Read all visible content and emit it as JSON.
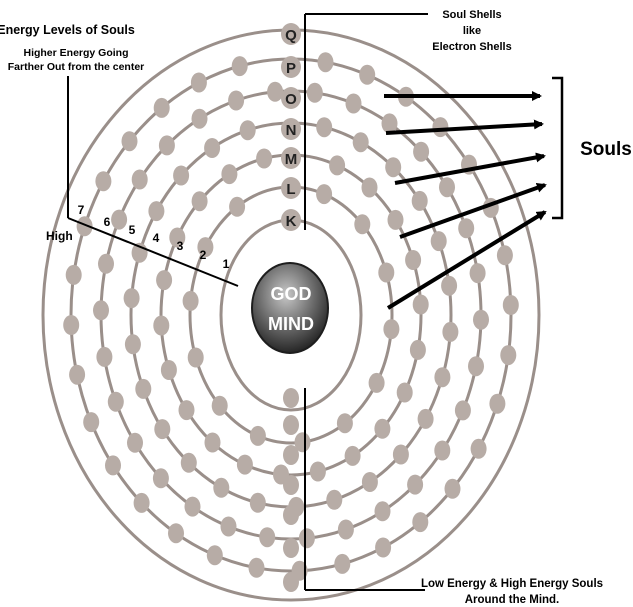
{
  "header_left": {
    "title": "Energy Levels of Souls",
    "subtitle_line1": "Higher Energy Going",
    "subtitle_line2": "Farther Out from the center"
  },
  "header_right": {
    "line1": "Soul Shells",
    "line2": "like",
    "line3": "Electron Shells"
  },
  "center": {
    "line1": "GOD",
    "line2": "MIND"
  },
  "souls_label": "Souls",
  "high_label": "High",
  "footer": {
    "line1": "Low Energy & High Energy Souls",
    "line2": "Around the Mind."
  },
  "shell_letters": [
    "K",
    "L",
    "M",
    "N",
    "O",
    "P",
    "Q"
  ],
  "level_numbers": [
    "1",
    "2",
    "3",
    "4",
    "5",
    "6",
    "7"
  ],
  "colors": {
    "ring": "#9a8f8a",
    "soul": "#b7aca6",
    "line": "#000000",
    "nucleus_light": "#b9b9b9",
    "nucleus_dark": "#2e2e2e"
  }
}
